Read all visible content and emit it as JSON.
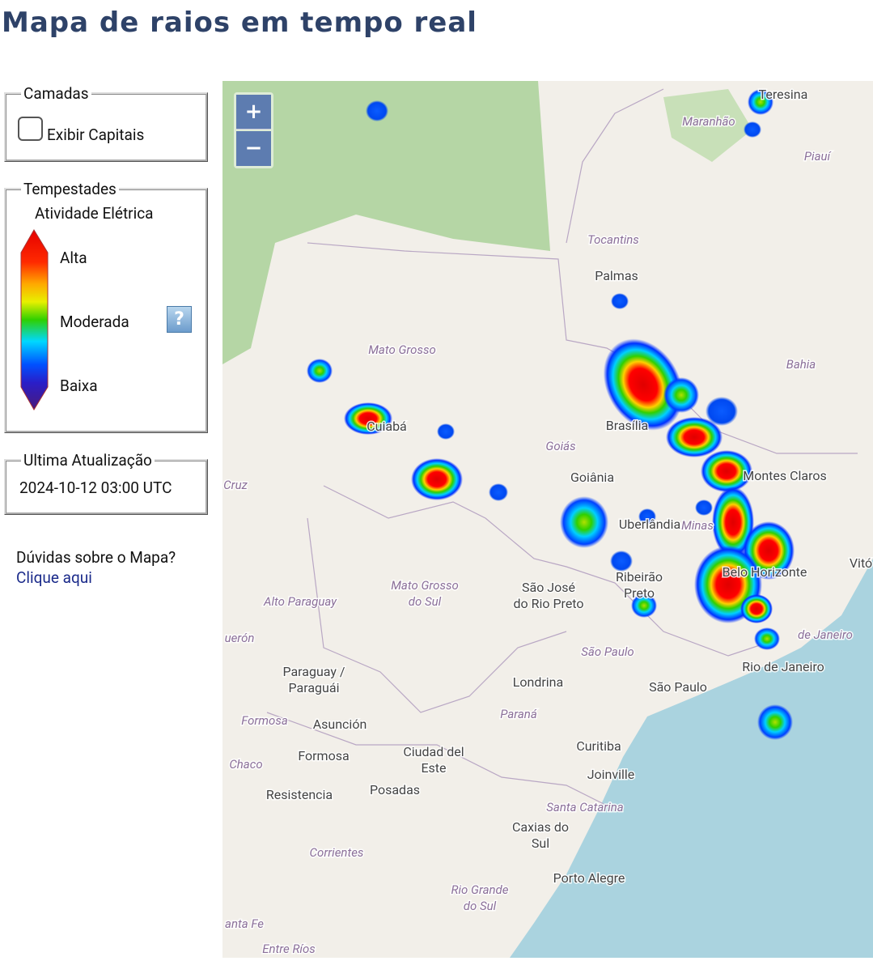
{
  "header": {
    "title": "Mapa de raios em tempo real"
  },
  "layers": {
    "legend": "Camadas",
    "checkbox_label": "Exibir Capitais"
  },
  "storms": {
    "legend": "Tempestades",
    "heading": "Atividade Elétrica",
    "levels": [
      "Alta",
      "Moderada",
      "Baixa"
    ],
    "help": "?"
  },
  "update": {
    "legend": "Ultima Atualização",
    "timestamp": "2024-10-12 03:00 UTC"
  },
  "help_text": {
    "question": "Dúvidas sobre o Mapa?",
    "link": "Clique aqui"
  },
  "map": {
    "zoom": [
      "+",
      "−"
    ],
    "labels": [
      {
        "lines": [
          "Teresina"
        ],
        "italic": false
      },
      {
        "lines": [
          "Maranhão"
        ],
        "italic": true
      },
      {
        "lines": [
          "Piauí"
        ],
        "italic": true
      },
      {
        "lines": [
          "Tocantins"
        ],
        "italic": true
      },
      {
        "lines": [
          "Palmas"
        ],
        "italic": false
      },
      {
        "lines": [
          "Mato Grosso"
        ],
        "italic": true
      },
      {
        "lines": [
          "Bahia"
        ],
        "italic": true
      },
      {
        "lines": [
          "Cuiabá"
        ],
        "italic": false
      },
      {
        "lines": [
          "Goiás"
        ],
        "italic": true
      },
      {
        "lines": [
          "Brasília"
        ],
        "italic": false
      },
      {
        "lines": [
          "Goiânia"
        ],
        "italic": false
      },
      {
        "lines": [
          "Montes Claros"
        ],
        "italic": false
      },
      {
        "lines": [
          "Cruz"
        ],
        "italic": true
      },
      {
        "lines": [
          "Uberlândia"
        ],
        "italic": false
      },
      {
        "lines": [
          "Minas"
        ],
        "italic": true
      },
      {
        "lines": [
          "Vitó"
        ],
        "italic": false
      },
      {
        "lines": [
          "Belo Horizonte"
        ],
        "italic": false
      },
      {
        "lines": [
          "Mato Grosso",
          "do Sul"
        ],
        "italic": true
      },
      {
        "lines": [
          "Alto Paraguay"
        ],
        "italic": true
      },
      {
        "lines": [
          "São José",
          "do Rio Preto"
        ],
        "italic": false
      },
      {
        "lines": [
          "Ribeirão",
          "Preto"
        ],
        "italic": false
      },
      {
        "lines": [
          "uerón"
        ],
        "italic": true
      },
      {
        "lines": [
          "de Janeiro"
        ],
        "italic": true
      },
      {
        "lines": [
          "São Paulo"
        ],
        "italic": true
      },
      {
        "lines": [
          "Rio de Janeiro"
        ],
        "italic": false
      },
      {
        "lines": [
          "São Paulo"
        ],
        "italic": false
      },
      {
        "lines": [
          "Londrina"
        ],
        "italic": false
      },
      {
        "lines": [
          "Paraguay /",
          "Paraguái"
        ],
        "italic": false
      },
      {
        "lines": [
          "Paraná"
        ],
        "italic": true
      },
      {
        "lines": [
          "Formosa"
        ],
        "italic": true
      },
      {
        "lines": [
          "Asunción"
        ],
        "italic": false
      },
      {
        "lines": [
          "Chaco"
        ],
        "italic": true
      },
      {
        "lines": [
          "Formosa"
        ],
        "italic": false
      },
      {
        "lines": [
          "Ciudad del",
          "Este"
        ],
        "italic": false
      },
      {
        "lines": [
          "Curitiba"
        ],
        "italic": false
      },
      {
        "lines": [
          "Joinville"
        ],
        "italic": false
      },
      {
        "lines": [
          "Resistencia"
        ],
        "italic": false
      },
      {
        "lines": [
          "Posadas"
        ],
        "italic": false
      },
      {
        "lines": [
          "Santa Catarina"
        ],
        "italic": true
      },
      {
        "lines": [
          "Caxias do",
          "Sul"
        ],
        "italic": false
      },
      {
        "lines": [
          "Corrientes"
        ],
        "italic": true
      },
      {
        "lines": [
          "Porto Alegre"
        ],
        "italic": false
      },
      {
        "lines": [
          "Rio Grande",
          "do Sul"
        ],
        "italic": true
      },
      {
        "lines": [
          "anta Fe"
        ],
        "italic": true
      },
      {
        "lines": [
          "Entre Ríos"
        ],
        "italic": true
      }
    ]
  }
}
